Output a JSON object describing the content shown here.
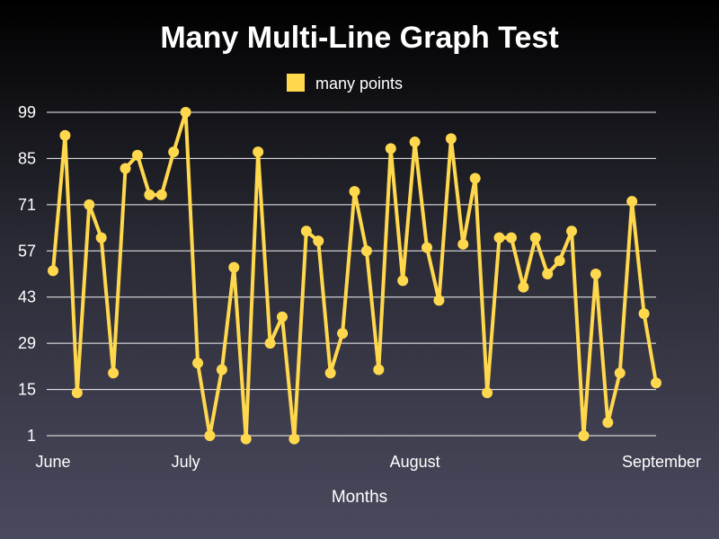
{
  "chart_data": {
    "type": "line",
    "title": "Many Multi-Line Graph Test",
    "xlabel": "Months",
    "ylabel": "",
    "ylim": [
      1,
      99
    ],
    "y_ticks": [
      "1",
      "15",
      "29",
      "43",
      "57",
      "71",
      "85",
      "99"
    ],
    "x_ticks": [
      {
        "label": "June",
        "index": 0
      },
      {
        "label": "July",
        "index": 11
      },
      {
        "label": "August",
        "index": 30
      },
      {
        "label": "September",
        "index": 50
      }
    ],
    "grid": "horizontal",
    "legend_position": "top-center",
    "series": [
      {
        "name": "many points",
        "color": "#ffd84d",
        "values": [
          51,
          92,
          14,
          71,
          61,
          20,
          82,
          86,
          74,
          74,
          87,
          99,
          23,
          1,
          21,
          52,
          0,
          87,
          29,
          37,
          0,
          63,
          60,
          20,
          32,
          75,
          57,
          21,
          88,
          48,
          90,
          58,
          42,
          91,
          59,
          79,
          14,
          61,
          61,
          46,
          61,
          50,
          54,
          63,
          1,
          50,
          5,
          20,
          72,
          38,
          17
        ]
      }
    ]
  }
}
